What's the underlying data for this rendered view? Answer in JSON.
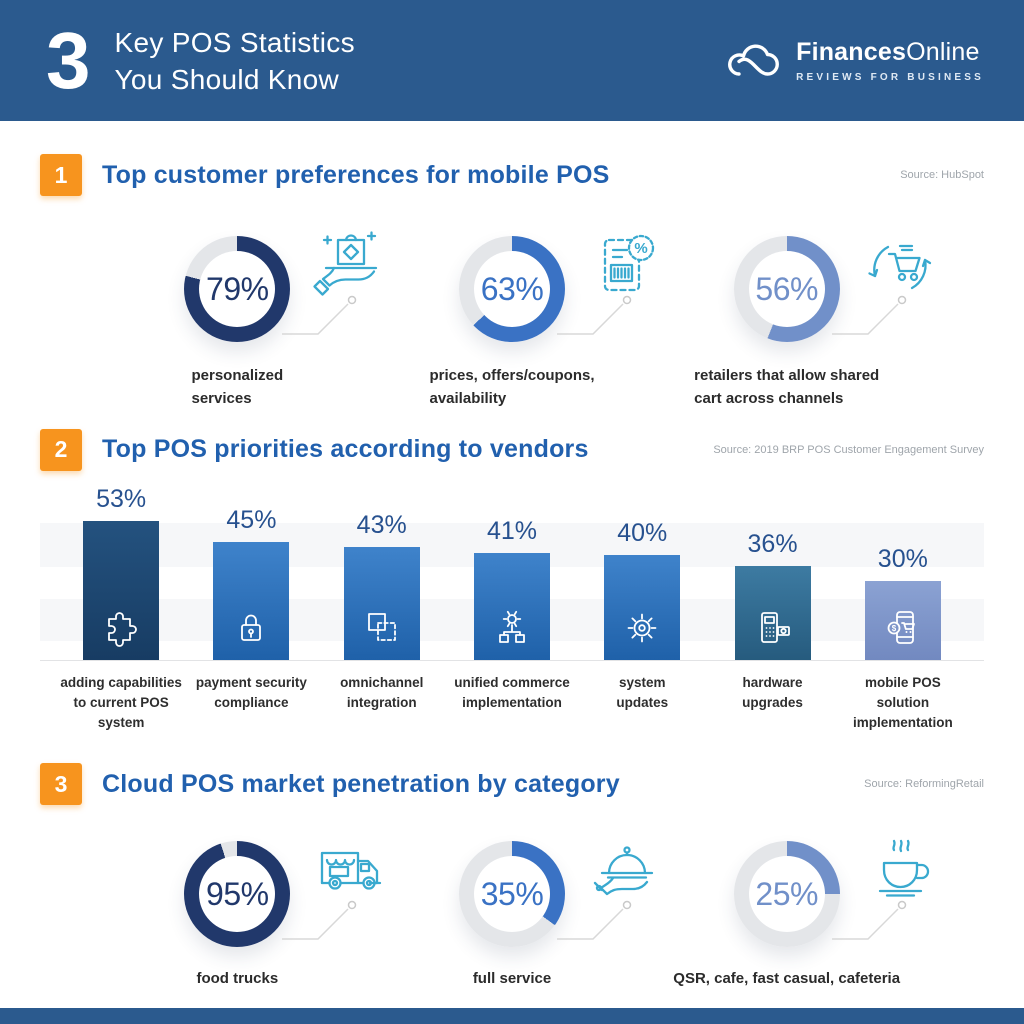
{
  "header": {
    "big_number": "3",
    "title_line1": "Key POS Statistics",
    "title_line2": "You Should Know",
    "brand_bold": "Finances",
    "brand_light": "Online",
    "brand_tagline": "REVIEWS FOR BUSINESS"
  },
  "colors": {
    "header_bg": "#2b5a8e",
    "section_number_bg": "#f7941e",
    "section_title": "#2160ae",
    "source_text": "#9fa5ab",
    "donut_track": "#e4e6e9",
    "accent_navy": "#21386b",
    "accent_blue": "#3a72c4",
    "accent_periwinkle": "#7190c9",
    "icon_teal": "#39a9cf"
  },
  "sections": [
    {
      "number": "1",
      "title": "Top customer preferences for mobile POS",
      "source": "Source: HubSpot",
      "items": [
        {
          "value": 79,
          "display": "79%",
          "color": "#21386b",
          "icon": "gift-hand-icon",
          "label_lines": [
            "personalized",
            "services"
          ]
        },
        {
          "value": 63,
          "display": "63%",
          "color": "#3a72c4",
          "icon": "discount-coupon-icon",
          "label_lines": [
            "prices, offers/coupons,",
            "availability"
          ]
        },
        {
          "value": 56,
          "display": "56%",
          "color": "#7190c9",
          "icon": "cart-sync-icon",
          "label_lines": [
            "retailers that allow shared",
            "cart across channels"
          ]
        }
      ]
    },
    {
      "number": "2",
      "title": "Top POS priorities according to vendors",
      "source": "Source: 2019 BRP POS Customer Engagement Survey",
      "bars": [
        {
          "value": 53,
          "display": "53%",
          "color_top": "#24527f",
          "color_bottom": "#173c63",
          "icon": "puzzle-icon",
          "label_lines": [
            "adding capabilities",
            "to current POS system"
          ]
        },
        {
          "value": 45,
          "display": "45%",
          "color_top": "#3f83cb",
          "color_bottom": "#1f61a9",
          "icon": "padlock-icon",
          "label_lines": [
            "payment security",
            "compliance"
          ]
        },
        {
          "value": 43,
          "display": "43%",
          "color_top": "#3f83cb",
          "color_bottom": "#1f61a9",
          "icon": "omnichannel-icon",
          "label_lines": [
            "omnichannel",
            "integration"
          ]
        },
        {
          "value": 41,
          "display": "41%",
          "color_top": "#3f83cb",
          "color_bottom": "#1f61a9",
          "icon": "workflow-gear-icon",
          "label_lines": [
            "unified commerce",
            "implementation"
          ]
        },
        {
          "value": 40,
          "display": "40%",
          "color_top": "#3f83cb",
          "color_bottom": "#1f61a9",
          "icon": "gear-icon",
          "label_lines": [
            "system",
            "updates"
          ]
        },
        {
          "value": 36,
          "display": "36%",
          "color_top": "#3d7ba2",
          "color_bottom": "#265b7e",
          "icon": "payment-terminal-icon",
          "label_lines": [
            "hardware",
            "upgrades"
          ]
        },
        {
          "value": 30,
          "display": "30%",
          "color_top": "#8ba2d3",
          "color_bottom": "#7289c0",
          "icon": "mobile-pos-icon",
          "label_lines": [
            "mobile POS solution",
            "implementation"
          ]
        }
      ]
    },
    {
      "number": "3",
      "title": "Cloud POS market penetration by category",
      "source": "Source: ReformingRetail",
      "items": [
        {
          "value": 95,
          "display": "95%",
          "color": "#21386b",
          "icon": "food-truck-icon",
          "label_lines": [
            "food trucks"
          ]
        },
        {
          "value": 35,
          "display": "35%",
          "color": "#3a72c4",
          "icon": "serving-dish-icon",
          "label_lines": [
            "full service"
          ]
        },
        {
          "value": 25,
          "display": "25%",
          "color": "#7190c9",
          "icon": "coffee-cup-icon",
          "label_lines": [
            "QSR, cafe, fast casual, cafeteria"
          ]
        }
      ]
    }
  ],
  "chart_data": [
    {
      "type": "pie",
      "variant": "donut-gauges",
      "title": "Top customer preferences for mobile POS",
      "source": "HubSpot",
      "unit": "%",
      "categories": [
        "personalized services",
        "prices, offers/coupons, availability",
        "retailers that allow shared cart across channels"
      ],
      "values": [
        79,
        63,
        56
      ]
    },
    {
      "type": "bar",
      "title": "Top POS priorities according to vendors",
      "source": "2019 BRP POS Customer Engagement Survey",
      "unit": "%",
      "ylim": [
        0,
        60
      ],
      "grid": false,
      "data_labels": true,
      "categories": [
        "adding capabilities to current POS system",
        "payment security compliance",
        "omnichannel integration",
        "unified commerce implementation",
        "system updates",
        "hardware upgrades",
        "mobile POS solution implementation"
      ],
      "values": [
        53,
        45,
        43,
        41,
        40,
        36,
        30
      ]
    },
    {
      "type": "pie",
      "variant": "donut-gauges",
      "title": "Cloud POS market penetration by category",
      "source": "ReformingRetail",
      "unit": "%",
      "categories": [
        "food trucks",
        "full service",
        "QSR, cafe, fast casual, cafeteria"
      ],
      "values": [
        95,
        35,
        25
      ]
    }
  ]
}
